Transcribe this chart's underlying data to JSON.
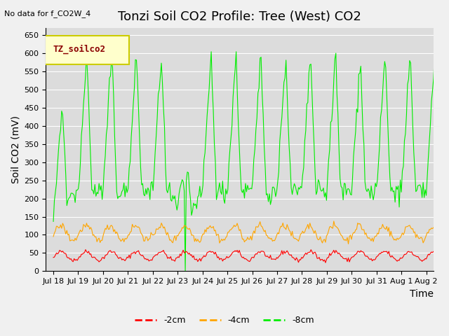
{
  "title": "Tonzi Soil CO2 Profile: Tree (West) CO2",
  "no_data_text": "No data for f_CO2W_4",
  "ylabel": "Soil CO2 (mV)",
  "xlabel": "Time",
  "legend_box_label": "TZ_soilco2",
  "ylim": [
    0,
    670
  ],
  "yticks": [
    0,
    50,
    100,
    150,
    200,
    250,
    300,
    350,
    400,
    450,
    500,
    550,
    600,
    650
  ],
  "xtick_labels": [
    "Jul 18",
    "Jul 19",
    "Jul 20",
    "Jul 21",
    "Jul 22",
    "Jul 23",
    "Jul 24",
    "Jul 25",
    "Jul 26",
    "Jul 27",
    "Jul 28",
    "Jul 29",
    "Jul 30",
    "Jul 31",
    "Aug 1",
    "Aug 2"
  ],
  "series": {
    "red": {
      "label": "-2cm",
      "color": "#FF0000"
    },
    "orange": {
      "label": "-4cm",
      "color": "#FFA500"
    },
    "green": {
      "label": "-8cm",
      "color": "#00EE00"
    }
  },
  "fig_bg_color": "#F0F0F0",
  "plot_bg_color": "#DCDCDC",
  "legend_box_color": "#FFFFCC",
  "legend_box_edge_color": "#CCCC00",
  "title_fontsize": 13,
  "axis_label_fontsize": 10,
  "tick_fontsize": 8
}
